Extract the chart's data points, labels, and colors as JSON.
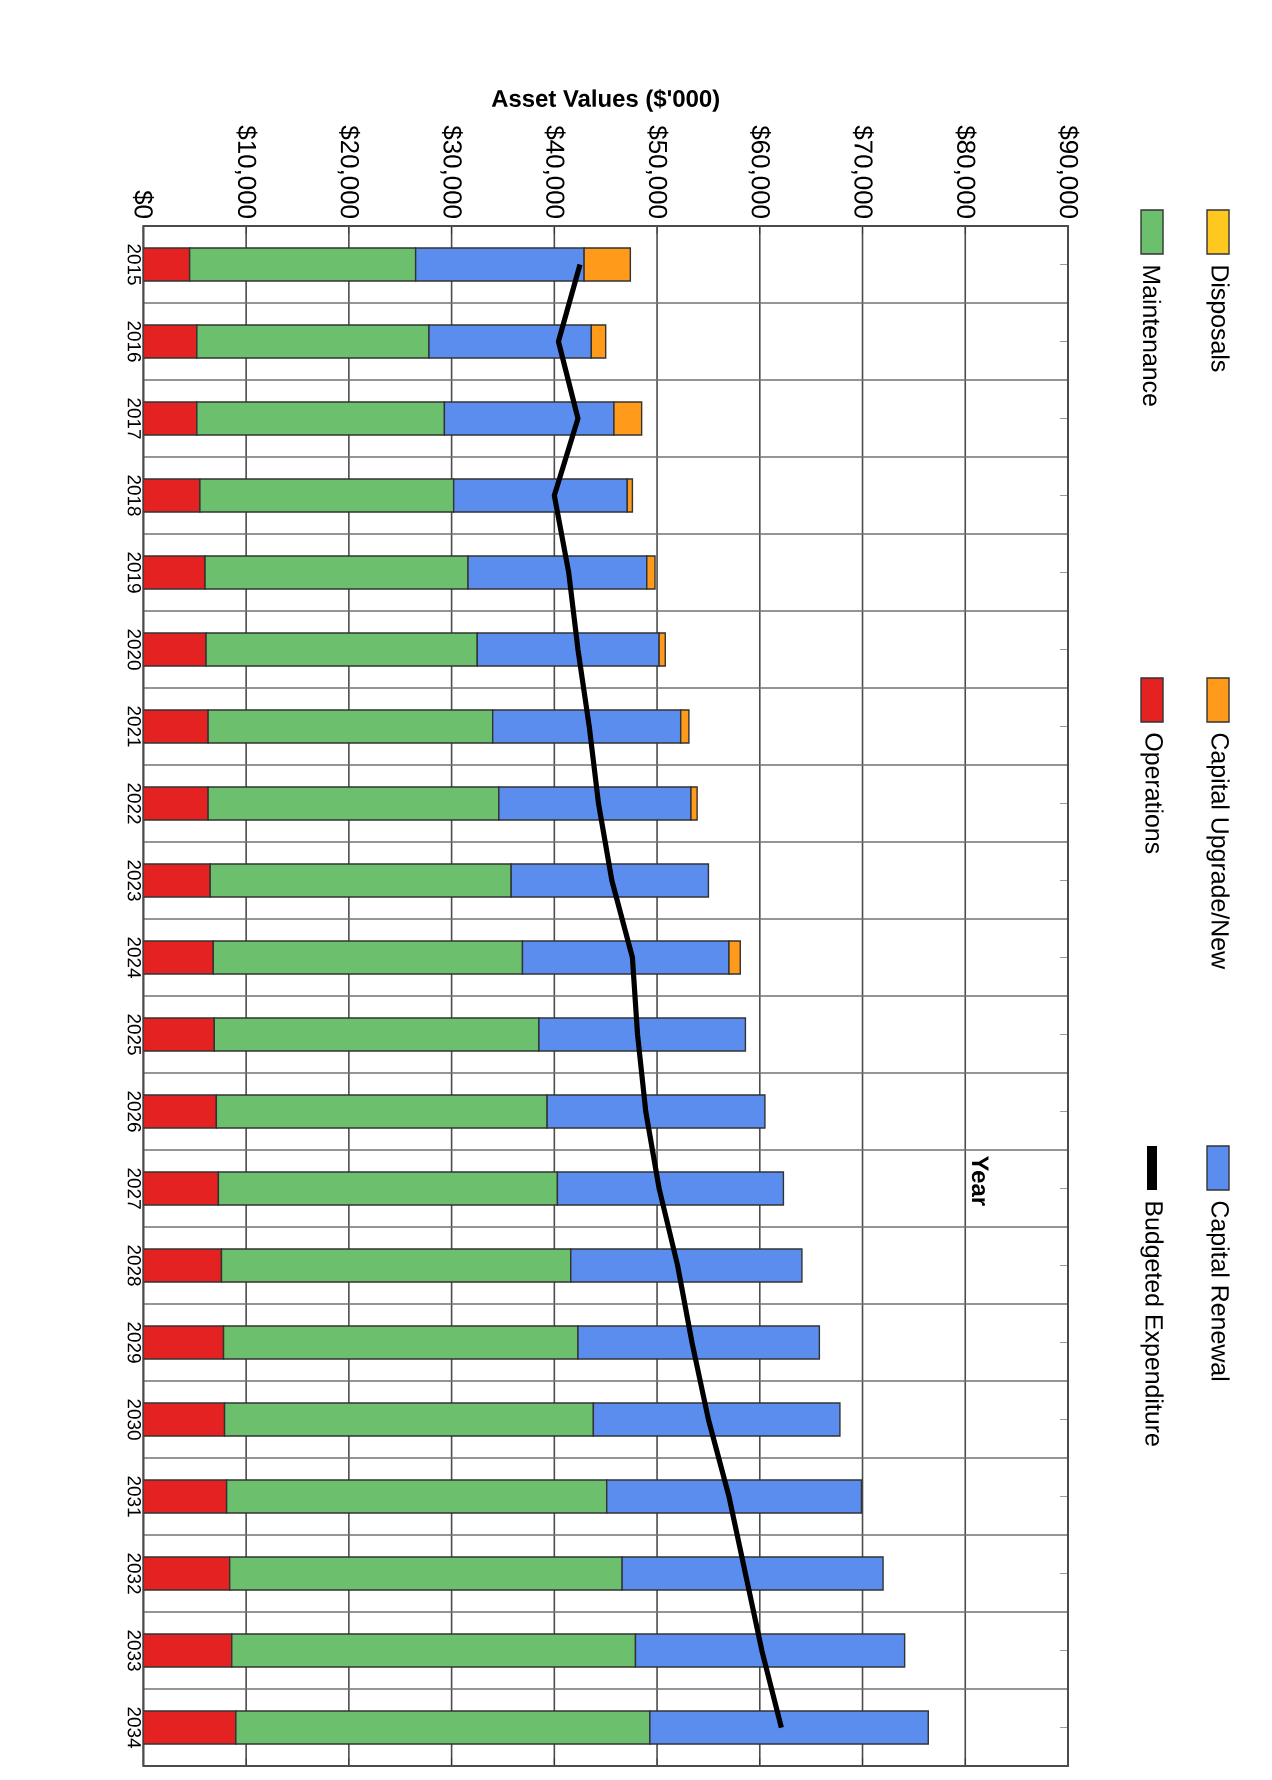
{
  "chart_data": {
    "type": "bar",
    "orientation": "horizontal",
    "stacked": true,
    "xlabel": "Asset Values ($'000)",
    "ylabel": "Year",
    "categories": [
      "2015",
      "2016",
      "2017",
      "2018",
      "2019",
      "2020",
      "2021",
      "2022",
      "2023",
      "2024",
      "2025",
      "2026",
      "2027",
      "2028",
      "2029",
      "2030",
      "2031",
      "2032",
      "2033",
      "2034"
    ],
    "xlim": [
      0,
      90000
    ],
    "xticks": [
      {
        "value": 0,
        "label": "$0"
      },
      {
        "value": 10000,
        "label": "$10,000"
      },
      {
        "value": 20000,
        "label": "$20,000"
      },
      {
        "value": 30000,
        "label": "$30,000"
      },
      {
        "value": 40000,
        "label": "$40,000"
      },
      {
        "value": 50000,
        "label": "$50,000"
      },
      {
        "value": 60000,
        "label": "$60,000"
      },
      {
        "value": 70000,
        "label": "$70,000"
      },
      {
        "value": 80000,
        "label": "$80,000"
      },
      {
        "value": 90000,
        "label": "$90,000"
      }
    ],
    "grid": true,
    "legend": "right",
    "series": [
      {
        "name": "Operations",
        "color": "#e52222",
        "values": [
          4500,
          5200,
          5200,
          5500,
          6000,
          6100,
          6300,
          6300,
          6500,
          6800,
          6900,
          7100,
          7300,
          7600,
          7800,
          7900,
          8100,
          8400,
          8600,
          9000
        ]
      },
      {
        "name": "Maintenance",
        "color": "#6cbf6c",
        "values": [
          22000,
          22600,
          24100,
          24700,
          25600,
          26400,
          27700,
          28300,
          29300,
          30100,
          31600,
          32200,
          33000,
          34000,
          34500,
          35900,
          37000,
          38200,
          39300,
          40300
        ]
      },
      {
        "name": "Capital Renewal",
        "color": "#5b8def",
        "values": [
          16400,
          15800,
          16500,
          16900,
          17400,
          17700,
          18300,
          18700,
          19200,
          20100,
          20100,
          21200,
          22000,
          22500,
          23500,
          24000,
          24800,
          25400,
          26200,
          27100
        ]
      },
      {
        "name": "Capital Upgrade/New",
        "color": "#ff9a1a",
        "values": [
          4500,
          1400,
          2700,
          500,
          800,
          600,
          800,
          600,
          null,
          1100,
          null,
          null,
          null,
          null,
          null,
          null,
          null,
          null,
          null,
          null
        ]
      },
      {
        "name": "Disposals",
        "color": "#ffc820",
        "values": [
          null,
          null,
          null,
          null,
          null,
          null,
          null,
          null,
          null,
          null,
          null,
          null,
          null,
          null,
          null,
          null,
          null,
          null,
          null,
          null
        ]
      },
      {
        "name": "Budgeted Expenditure",
        "type": "line",
        "color": "#000000",
        "values": [
          42500,
          40400,
          42300,
          40000,
          41400,
          42300,
          43400,
          44300,
          45600,
          47600,
          48100,
          48900,
          50200,
          52000,
          53400,
          55000,
          57000,
          58600,
          60200,
          62100
        ]
      }
    ]
  }
}
